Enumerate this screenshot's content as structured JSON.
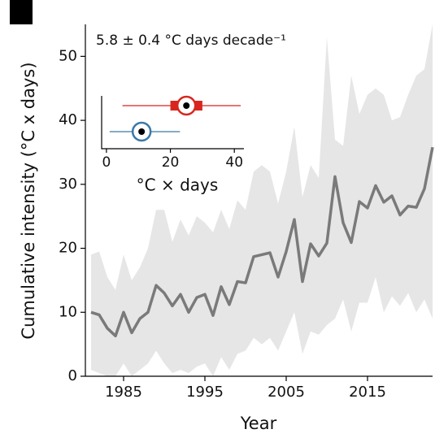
{
  "chart_data": {
    "type": "line",
    "annotation": "5.8 ± 0.4 °C days decade⁻¹",
    "x_label": "Year",
    "y_label": "Cumulative intensity (°C x days)",
    "x": [
      1981,
      1982,
      1983,
      1984,
      1985,
      1986,
      1987,
      1988,
      1989,
      1990,
      1991,
      1992,
      1993,
      1994,
      1995,
      1996,
      1997,
      1998,
      1999,
      2000,
      2001,
      2002,
      2003,
      2004,
      2005,
      2006,
      2007,
      2008,
      2009,
      2010,
      2011,
      2012,
      2013,
      2014,
      2015,
      2016,
      2017,
      2018,
      2019,
      2020,
      2021,
      2022,
      2023
    ],
    "series": [
      {
        "color": "#7a7a7a",
        "values": [
          10,
          9.6,
          7.5,
          6.3,
          10,
          6.8,
          9,
          10,
          14.2,
          13,
          11,
          12.8,
          10,
          12.3,
          12.8,
          9.5,
          14,
          11.2,
          14.8,
          14.6,
          18.7,
          19,
          19.3,
          15.5,
          19.5,
          24.5,
          14.8,
          20.7,
          18.8,
          20.8,
          31.2,
          24,
          20.9,
          27.3,
          26.3,
          29.8,
          27.2,
          28.2,
          25.2,
          26.6,
          26.4,
          29.3,
          35.8
        ]
      }
    ],
    "band": {
      "color": "#e6e6e6",
      "upper": [
        19,
        19.5,
        15.5,
        13.5,
        19,
        15,
        17,
        20,
        26,
        26,
        21,
        24.5,
        22,
        25,
        24,
        22.5,
        26,
        23,
        27.5,
        26,
        32,
        33,
        32,
        27,
        32,
        39,
        28,
        33,
        31,
        53,
        37,
        36,
        47,
        41,
        44,
        45,
        44,
        40,
        40.5,
        44,
        47,
        48,
        55
      ],
      "lower": [
        1,
        0.5,
        0,
        0,
        2,
        0,
        1,
        2,
        4,
        2,
        0.5,
        1,
        0.5,
        1.5,
        2,
        0,
        3,
        1,
        3.5,
        4,
        6,
        5,
        6,
        4,
        7,
        10,
        3.5,
        7,
        6.5,
        8,
        9,
        12,
        7,
        11.5,
        11.5,
        15.5,
        10,
        12.5,
        11,
        13,
        10,
        12,
        9
      ]
    },
    "xlim": [
      1980.5,
      2023
    ],
    "ylim": [
      0,
      55
    ],
    "xticks": [
      1985,
      1995,
      2005,
      2015
    ],
    "yticks": [
      0,
      10,
      20,
      30,
      40,
      50
    ],
    "inset": {
      "type": "errorbar",
      "x_label": "°C × days",
      "xlim": [
        -1.5,
        43
      ],
      "xticks": [
        0,
        20,
        40
      ],
      "rows": [
        {
          "color": "#d8261e",
          "value": 25,
          "low": 5,
          "high": 42,
          "box_low": 20,
          "box_high": 30
        },
        {
          "color": "#3b79a6",
          "value": 11,
          "low": 1,
          "high": 23
        }
      ]
    }
  }
}
